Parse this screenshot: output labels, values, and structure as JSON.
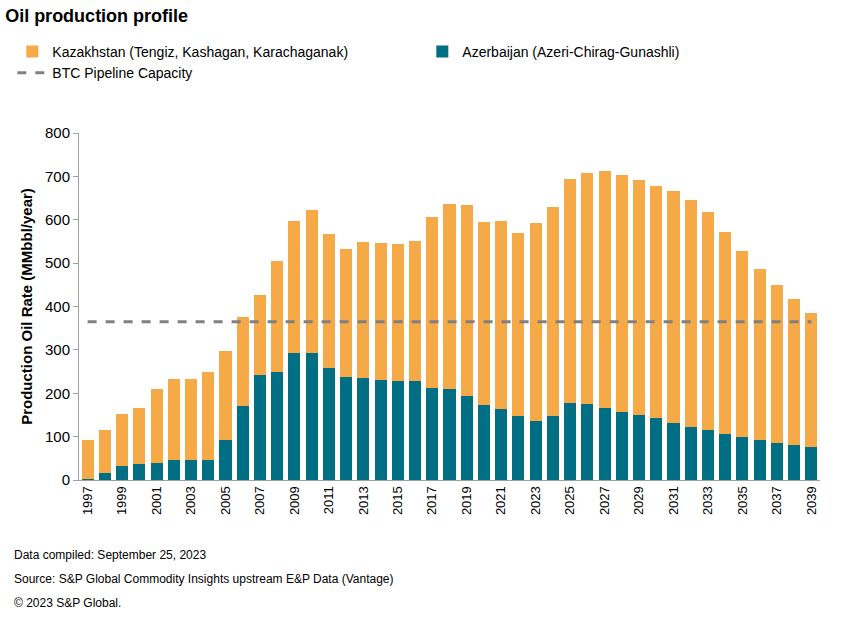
{
  "chart_data": {
    "type": "bar",
    "stacked": true,
    "title": "Oil production profile",
    "y_label": "Production Oil Rate (MMbbl/year)",
    "categories": [
      "1997",
      null,
      "1999",
      null,
      "2001",
      null,
      "2003",
      null,
      "2005",
      null,
      "2007",
      null,
      "2009",
      null,
      "2011",
      null,
      "2013",
      null,
      "2015",
      null,
      "2017",
      null,
      "2019",
      null,
      "2021",
      null,
      "2023",
      null,
      "2025",
      null,
      "2027",
      null,
      "2029",
      null,
      "2031",
      null,
      "2033",
      null,
      "2035",
      null,
      "2037",
      null,
      "2039"
    ],
    "series": [
      {
        "name": "Kazakhstan (Tengiz, Kashagan, Karachaganak)",
        "type": "bar",
        "color": "#f5a947",
        "values": [
          91,
          100,
          119,
          131,
          170,
          188,
          187,
          205,
          205,
          205,
          186,
          257,
          305,
          330,
          308,
          295,
          312,
          317,
          317,
          322,
          395,
          427,
          440,
          422,
          434,
          422,
          457,
          482,
          517,
          533,
          547,
          546,
          542,
          536,
          535,
          523,
          502,
          466,
          430,
          395,
          365,
          337,
          309
        ]
      },
      {
        "name": "Azerbaijan (Azeri-Chirag-Gunashli)",
        "type": "bar",
        "color": "#006f83",
        "values": [
          2,
          15,
          33,
          36,
          40,
          45,
          45,
          45,
          93,
          170,
          241,
          248,
          292,
          292,
          259,
          238,
          236,
          230,
          228,
          228,
          212,
          210,
          193,
          173,
          163,
          148,
          135,
          148,
          178,
          175,
          165,
          157,
          150,
          142,
          132,
          122,
          115,
          106,
          98,
          92,
          85,
          80,
          76
        ]
      },
      {
        "name": "BTC Pipeline Capacity",
        "type": "line",
        "line_style": "dashed",
        "color": "#808080",
        "values": [
          365,
          365,
          365,
          365,
          365,
          365,
          365,
          365,
          365,
          365,
          365,
          365,
          365,
          365,
          365,
          365,
          365,
          365,
          365,
          365,
          365,
          365,
          365,
          365,
          365,
          365,
          365,
          365,
          365,
          365,
          365,
          365,
          365,
          365,
          365,
          365,
          365,
          365,
          365,
          365,
          365,
          365,
          365
        ]
      }
    ],
    "ylim": [
      0,
      800
    ],
    "yticks": [
      0,
      100,
      200,
      300,
      400,
      500,
      600,
      700,
      800
    ],
    "grid": false,
    "legend": "top-left",
    "annotations": [
      "Data compiled: September 25, 2023",
      "Source: S&P Global Commodity Insights upstream E&P Data (Vantage)",
      "© 2023 S&P Global."
    ]
  }
}
